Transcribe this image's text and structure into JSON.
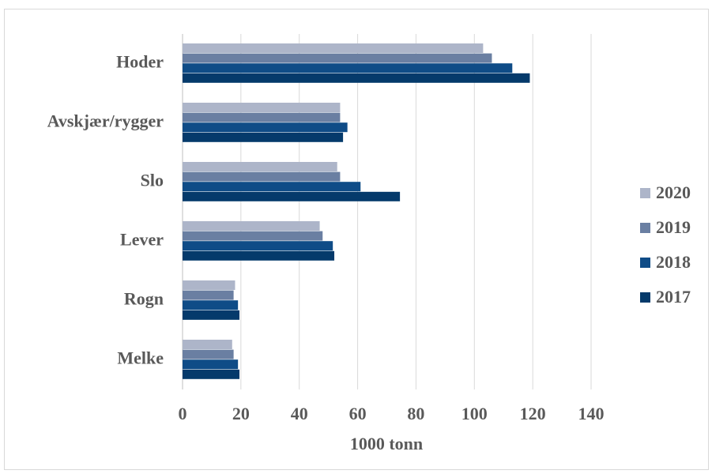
{
  "chart_data": {
    "type": "bar",
    "orientation": "horizontal",
    "title": "",
    "xlabel": "1000 tonn",
    "ylabel": "",
    "xlim": [
      0,
      140
    ],
    "xticks": [
      0,
      20,
      40,
      60,
      80,
      100,
      120,
      140
    ],
    "grid": "vertical",
    "legend_position": "right",
    "categories": [
      "Hoder",
      "Avskjær/rygger",
      "Slo",
      "Lever",
      "Rogn",
      "Melke"
    ],
    "series": [
      {
        "name": "2020",
        "color": "#adb5c9",
        "values": [
          103,
          54,
          53,
          47,
          18,
          17
        ]
      },
      {
        "name": "2019",
        "color": "#6a7fa2",
        "values": [
          106,
          54,
          54,
          48,
          17.5,
          17.5
        ]
      },
      {
        "name": "2018",
        "color": "#0f4c87",
        "values": [
          113,
          56.5,
          61,
          51.5,
          19,
          19
        ]
      },
      {
        "name": "2017",
        "color": "#053a6b",
        "values": [
          119,
          55,
          74.5,
          52,
          19.5,
          19.5
        ]
      }
    ],
    "legend_order": [
      "2020",
      "2019",
      "2018",
      "2017"
    ]
  }
}
